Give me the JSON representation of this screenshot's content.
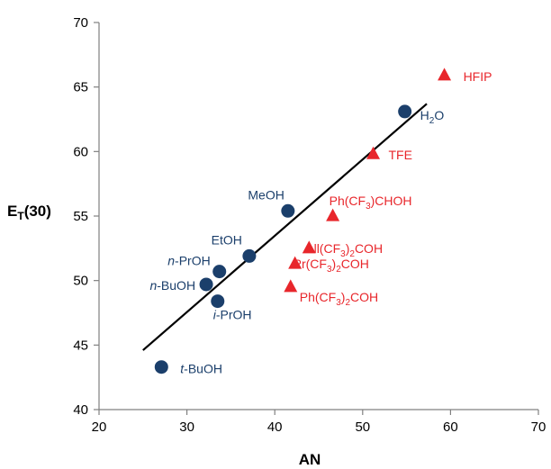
{
  "chart_data": {
    "type": "scatter",
    "xlabel": "AN",
    "ylabel": {
      "main": "E",
      "sub": "T",
      "rest": "(30)"
    },
    "xlim": [
      20,
      70
    ],
    "ylim": [
      40,
      70
    ],
    "xticks": [
      "20",
      "30",
      "40",
      "50",
      "60",
      "70"
    ],
    "yticks": [
      "40",
      "45",
      "50",
      "55",
      "60",
      "65",
      "70"
    ],
    "grid": false,
    "legend": "none",
    "series": [
      {
        "marker": "circle",
        "color": "#1b3f6b",
        "points": [
          {
            "label": "t-BuOH",
            "italic": "t",
            "rest": "-BuOH",
            "x": 27.1,
            "y": 43.3
          },
          {
            "label": "n-BuOH",
            "italic": "n",
            "rest": "-BuOH",
            "x": 32.2,
            "y": 49.7
          },
          {
            "label": "i-PrOH",
            "italic": "i",
            "rest": "-PrOH",
            "x": 33.5,
            "y": 48.4
          },
          {
            "label": "n-PrOH",
            "italic": "n",
            "rest": "-PrOH",
            "x": 33.7,
            "y": 50.7
          },
          {
            "label": "EtOH",
            "x": 37.1,
            "y": 51.9
          },
          {
            "label": "MeOH",
            "x": 41.5,
            "y": 55.4
          },
          {
            "label": "H2O",
            "base": "H",
            "sub": "2",
            "after": "O",
            "x": 54.8,
            "y": 63.1
          }
        ]
      },
      {
        "marker": "triangle",
        "color": "#e8262b",
        "points": [
          {
            "label": "HFIP",
            "x": 59.3,
            "y": 65.9
          },
          {
            "label": "TFE",
            "x": 51.2,
            "y": 59.8
          },
          {
            "label": "Ph(CF3)CHOH",
            "base": "Ph(CF",
            "sub": "3",
            "after": ")CHOH",
            "x": 46.6,
            "y": 55.0
          },
          {
            "label": "All(CF3)2COH",
            "base": "All(CF",
            "sub": "3",
            "after": ")",
            "sub2": "2",
            "after2": "COH",
            "x": 43.9,
            "y": 52.5
          },
          {
            "label": "Pr(CF3)2COH",
            "base": "Pr(CF",
            "sub": "3",
            "after": ")",
            "sub2": "2",
            "after2": "COH",
            "x": 42.3,
            "y": 51.3
          },
          {
            "label": "Ph(CF3)2COH",
            "base": "Ph(CF",
            "sub": "3",
            "after": ")",
            "sub2": "2",
            "after2": "COH",
            "x": 41.8,
            "y": 49.5
          }
        ]
      }
    ],
    "trendline": {
      "color": "#000000",
      "from": [
        25.0,
        44.6
      ],
      "to": [
        57.3,
        63.7
      ]
    }
  }
}
